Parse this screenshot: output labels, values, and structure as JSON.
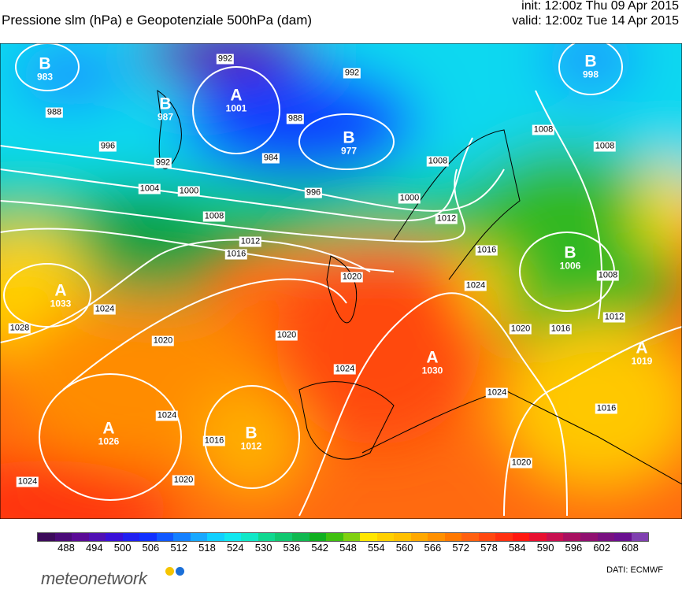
{
  "header": {
    "title": "Pressione slm (hPa) e Geopotenziale 500hPa (dam)",
    "init": "init: 12:00z Thu 09 Apr 2015",
    "valid": "valid: 12:00z Tue 14 Apr 2015"
  },
  "map": {
    "centers": [
      {
        "letter": "B",
        "value": "983"
      },
      {
        "letter": "B",
        "value": "987"
      },
      {
        "letter": "A",
        "value": "1001"
      },
      {
        "letter": "B",
        "value": "977"
      },
      {
        "letter": "B",
        "value": "998"
      },
      {
        "letter": "A",
        "value": "1033"
      },
      {
        "letter": "B",
        "value": "1006"
      },
      {
        "letter": "A",
        "value": "1030"
      },
      {
        "letter": "A",
        "value": "1019"
      },
      {
        "letter": "A",
        "value": "1026"
      },
      {
        "letter": "B",
        "value": "1012"
      }
    ],
    "isobar_labels": [
      "988",
      "992",
      "992",
      "996",
      "992",
      "984",
      "988",
      "996",
      "1004",
      "1000",
      "1008",
      "1012",
      "1016",
      "1020",
      "1024",
      "1028",
      "1020",
      "1024",
      "1024",
      "1016",
      "1020",
      "1024",
      "1000",
      "1008",
      "1012",
      "1016",
      "1024",
      "1020",
      "1008",
      "1008",
      "1008",
      "1012",
      "1016",
      "1020",
      "1024",
      "1020",
      "1016"
    ]
  },
  "colorbar": {
    "labels": [
      "488",
      "494",
      "500",
      "506",
      "512",
      "518",
      "524",
      "530",
      "536",
      "542",
      "548",
      "554",
      "560",
      "566",
      "572",
      "578",
      "584",
      "590",
      "596",
      "602",
      "608"
    ],
    "colors": [
      "#3c0a5a",
      "#4a0a78",
      "#5a0a96",
      "#5010b4",
      "#3a10d8",
      "#2020f0",
      "#1030ff",
      "#1058ff",
      "#1480ff",
      "#18a8ff",
      "#10d0ff",
      "#10e8f0",
      "#10e8c8",
      "#10d890",
      "#10c870",
      "#10b850",
      "#10b020",
      "#40c010",
      "#80d010",
      "#ffe600",
      "#ffd000",
      "#ffc000",
      "#ffa800",
      "#ff9000",
      "#ff7800",
      "#ff6010",
      "#ff4810",
      "#ff3010",
      "#ff1810",
      "#e81030",
      "#c81050",
      "#a81060",
      "#901070",
      "#781080",
      "#6a1090",
      "#8040b0"
    ],
    "source": "DATI:  ECMWF",
    "brand": "meteonetwork",
    "brand_colors": [
      "#f5c400",
      "#1a6fd8"
    ]
  }
}
